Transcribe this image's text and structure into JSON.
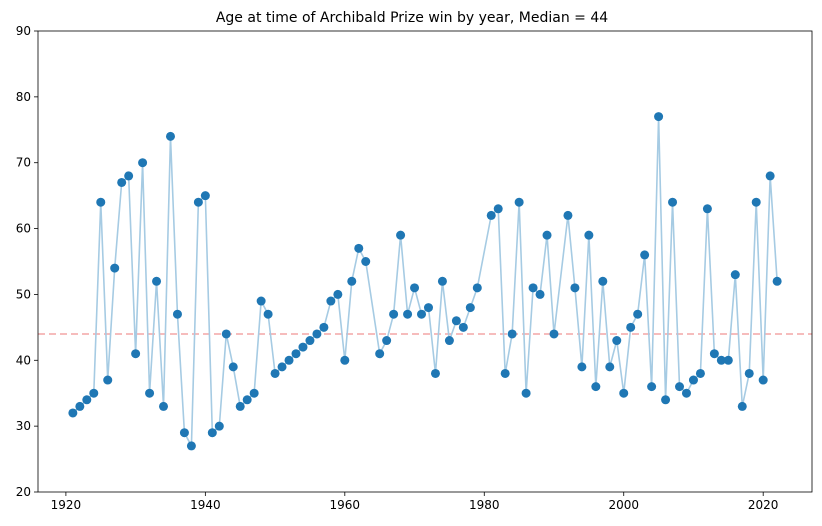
{
  "chart_data": {
    "type": "line",
    "title": "Age at time of Archibald Prize win by year, Median = 44",
    "xlabel": "",
    "ylabel": "",
    "xlim": [
      1916,
      2027
    ],
    "ylim": [
      20,
      90
    ],
    "x_ticks": [
      1920,
      1940,
      1960,
      1980,
      2000,
      2020
    ],
    "y_ticks": [
      20,
      30,
      40,
      50,
      60,
      70,
      80,
      90
    ],
    "grid": false,
    "legend": "none",
    "median": 44,
    "colors": {
      "line": "#a6cbe3",
      "marker": "#1f77b4",
      "median_line": "#f4a6a6",
      "axis": "#000000"
    },
    "series": [
      {
        "points": [
          [
            1921,
            32
          ],
          [
            1922,
            33
          ],
          [
            1923,
            34
          ],
          [
            1924,
            35
          ],
          [
            1925,
            64
          ],
          [
            1926,
            37
          ],
          [
            1927,
            54
          ],
          [
            1928,
            67
          ],
          [
            1929,
            68
          ],
          [
            1930,
            41
          ],
          [
            1931,
            70
          ],
          [
            1932,
            35
          ],
          [
            1933,
            52
          ],
          [
            1934,
            33
          ],
          [
            1935,
            74
          ],
          [
            1936,
            47
          ],
          [
            1937,
            29
          ],
          [
            1938,
            27
          ],
          [
            1939,
            64
          ],
          [
            1940,
            65
          ],
          [
            1941,
            29
          ],
          [
            1942,
            30
          ],
          [
            1943,
            44
          ],
          [
            1944,
            39
          ],
          [
            1945,
            33
          ],
          [
            1946,
            34
          ],
          [
            1947,
            35
          ],
          [
            1948,
            49
          ],
          [
            1949,
            47
          ],
          [
            1950,
            38
          ],
          [
            1951,
            39
          ],
          [
            1952,
            40
          ],
          [
            1953,
            41
          ],
          [
            1954,
            42
          ],
          [
            1955,
            43
          ],
          [
            1956,
            44
          ],
          [
            1957,
            45
          ],
          [
            1958,
            49
          ],
          [
            1959,
            50
          ],
          [
            1960,
            40
          ],
          [
            1961,
            52
          ],
          [
            1962,
            57
          ],
          [
            1963,
            55
          ],
          [
            1965,
            41
          ],
          [
            1966,
            43
          ],
          [
            1967,
            47
          ],
          [
            1968,
            59
          ],
          [
            1969,
            47
          ],
          [
            1970,
            51
          ],
          [
            1971,
            47
          ],
          [
            1972,
            48
          ],
          [
            1973,
            38
          ],
          [
            1974,
            52
          ],
          [
            1975,
            43
          ],
          [
            1976,
            46
          ],
          [
            1977,
            45
          ],
          [
            1978,
            48
          ],
          [
            1979,
            51
          ],
          [
            1981,
            62
          ],
          [
            1982,
            63
          ],
          [
            1983,
            38
          ],
          [
            1984,
            44
          ],
          [
            1985,
            64
          ],
          [
            1986,
            35
          ],
          [
            1987,
            51
          ],
          [
            1988,
            50
          ],
          [
            1989,
            59
          ],
          [
            1990,
            44
          ],
          [
            1992,
            62
          ],
          [
            1993,
            51
          ],
          [
            1994,
            39
          ],
          [
            1995,
            59
          ],
          [
            1996,
            36
          ],
          [
            1997,
            52
          ],
          [
            1998,
            39
          ],
          [
            1999,
            43
          ],
          [
            2000,
            35
          ],
          [
            2001,
            45
          ],
          [
            2002,
            47
          ],
          [
            2003,
            56
          ],
          [
            2004,
            36
          ],
          [
            2005,
            77
          ],
          [
            2006,
            34
          ],
          [
            2007,
            64
          ],
          [
            2008,
            36
          ],
          [
            2009,
            35
          ],
          [
            2010,
            37
          ],
          [
            2011,
            38
          ],
          [
            2012,
            63
          ],
          [
            2013,
            41
          ],
          [
            2014,
            40
          ],
          [
            2015,
            40
          ],
          [
            2016,
            53
          ],
          [
            2017,
            33
          ],
          [
            2018,
            38
          ],
          [
            2019,
            64
          ],
          [
            2020,
            37
          ],
          [
            2021,
            68
          ],
          [
            2022,
            52
          ]
        ]
      }
    ]
  }
}
